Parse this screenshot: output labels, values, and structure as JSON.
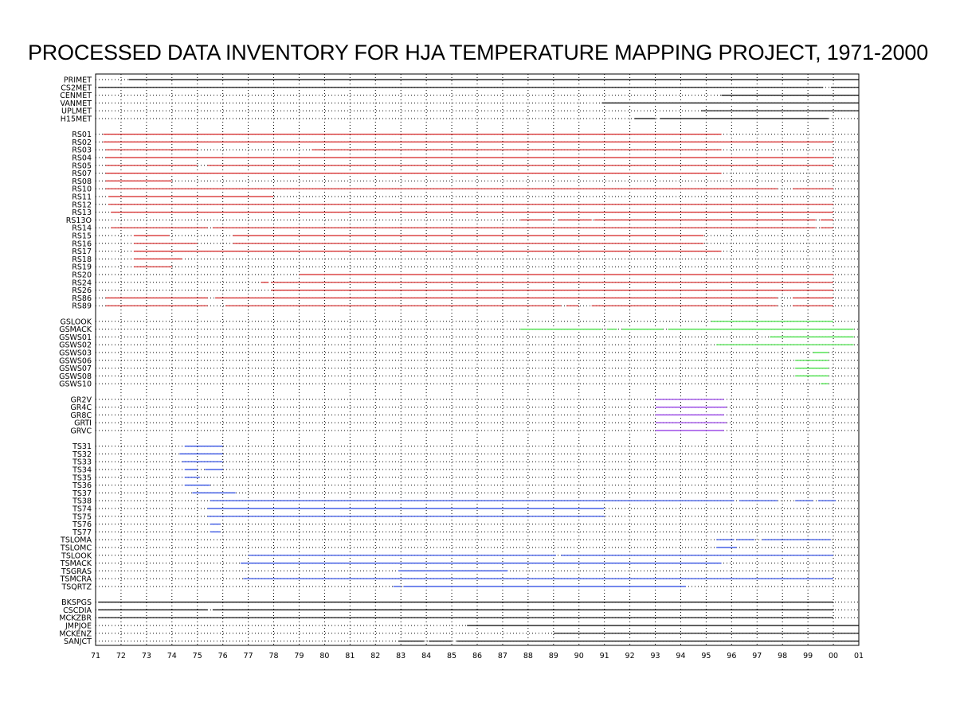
{
  "chart_data": {
    "type": "timeline",
    "title": "PROCESSED DATA INVENTORY FOR HJA TEMPERATURE MAPPING PROJECT, 1971-2000",
    "xlim": [
      1971,
      2001
    ],
    "x_tick_labels": [
      "71",
      "72",
      "73",
      "74",
      "75",
      "76",
      "77",
      "78",
      "79",
      "80",
      "81",
      "82",
      "83",
      "84",
      "85",
      "86",
      "87",
      "88",
      "89",
      "90",
      "91",
      "92",
      "93",
      "94",
      "95",
      "96",
      "97",
      "98",
      "99",
      "00",
      "01"
    ],
    "grid": "dotted",
    "groups": [
      {
        "color": "#000000",
        "stations": [
          {
            "name": "PRIMET",
            "spans": [
              [
                1972.3,
                2001.0
              ]
            ]
          },
          {
            "name": "CS2MET",
            "spans": [
              [
                1971.1,
                1999.6
              ],
              [
                1999.9,
                2001.0
              ]
            ]
          },
          {
            "name": "CENMET",
            "spans": [
              [
                1995.6,
                2001.0
              ]
            ]
          },
          {
            "name": "VANMET",
            "spans": [
              [
                1990.9,
                2001.0
              ]
            ]
          },
          {
            "name": "UPLMET",
            "spans": [
              [
                1994.8,
                2001.0
              ]
            ]
          },
          {
            "name": "H15MET",
            "spans": [
              [
                1992.2,
                1993.0
              ],
              [
                1993.2,
                1999.8
              ]
            ]
          }
        ]
      },
      {
        "color": "#d42020",
        "stations": [
          {
            "name": "RS01",
            "spans": [
              [
                1971.3,
                1995.6
              ]
            ]
          },
          {
            "name": "RS02",
            "spans": [
              [
                1971.3,
                2000.0
              ]
            ]
          },
          {
            "name": "RS03",
            "spans": [
              [
                1971.4,
                1975.0
              ],
              [
                1979.5,
                1995.6
              ]
            ]
          },
          {
            "name": "RS04",
            "spans": [
              [
                1971.4,
                2000.0
              ]
            ]
          },
          {
            "name": "RS05",
            "spans": [
              [
                1971.4,
                1975.0
              ],
              [
                1975.4,
                2000.0
              ]
            ]
          },
          {
            "name": "RS07",
            "spans": [
              [
                1971.4,
                1995.6
              ]
            ]
          },
          {
            "name": "RS08",
            "spans": [
              [
                1971.4,
                1974.0
              ]
            ]
          },
          {
            "name": "RS10",
            "spans": [
              [
                1971.4,
                1997.8
              ],
              [
                1998.4,
                2000.0
              ]
            ]
          },
          {
            "name": "RS11",
            "spans": [
              [
                1971.5,
                1978.0
              ]
            ]
          },
          {
            "name": "RS12",
            "spans": [
              [
                1971.5,
                2000.0
              ]
            ]
          },
          {
            "name": "RS13",
            "spans": [
              [
                1971.6,
                2000.0
              ]
            ]
          },
          {
            "name": "RS13O",
            "spans": [
              [
                1987.7,
                1988.9
              ],
              [
                1989.2,
                1990.5
              ],
              [
                1990.6,
                1999.3
              ],
              [
                1999.5,
                2000.0
              ]
            ]
          },
          {
            "name": "RS14",
            "spans": [
              [
                1971.6,
                1975.4
              ],
              [
                1975.6,
                1999.3
              ],
              [
                1999.5,
                2000.0
              ]
            ]
          },
          {
            "name": "RS15",
            "spans": [
              [
                1972.5,
                1973.9
              ],
              [
                1976.4,
                1994.9
              ]
            ]
          },
          {
            "name": "RS16",
            "spans": [
              [
                1972.5,
                1975.0
              ],
              [
                1976.4,
                1994.9
              ]
            ]
          },
          {
            "name": "RS17",
            "spans": [
              [
                1972.5,
                1995.6
              ]
            ]
          },
          {
            "name": "RS18",
            "spans": [
              [
                1972.5,
                1974.4
              ]
            ]
          },
          {
            "name": "RS19",
            "spans": [
              [
                1972.5,
                1974.0
              ]
            ]
          },
          {
            "name": "RS20",
            "spans": [
              [
                1979.0,
                2000.0
              ]
            ]
          },
          {
            "name": "RS24",
            "spans": [
              [
                1977.5,
                1977.8
              ],
              [
                1977.9,
                2000.0
              ]
            ]
          },
          {
            "name": "RS26",
            "spans": [
              [
                1977.9,
                2000.0
              ]
            ]
          },
          {
            "name": "RS86",
            "spans": [
              [
                1971.4,
                1975.4
              ],
              [
                1975.7,
                1997.8
              ],
              [
                1998.4,
                2000.0
              ]
            ]
          },
          {
            "name": "RS89",
            "spans": [
              [
                1971.4,
                1975.4
              ],
              [
                1976.1,
                1989.3
              ],
              [
                1989.5,
                1990.0
              ],
              [
                1990.5,
                1997.8
              ],
              [
                1998.4,
                2000.0
              ]
            ]
          }
        ]
      },
      {
        "color": "#33dd33",
        "stations": [
          {
            "name": "GSLOOK",
            "spans": [
              [
                1995.2,
                2000.0
              ]
            ]
          },
          {
            "name": "GSMACK",
            "spans": [
              [
                1987.7,
                1990.9
              ],
              [
                1991.1,
                1991.5
              ],
              [
                1991.7,
                1993.3
              ],
              [
                1993.5,
                2000.8
              ]
            ]
          },
          {
            "name": "GSWS01",
            "spans": [
              [
                1997.5,
                2000.8
              ]
            ]
          },
          {
            "name": "GSWS02",
            "spans": [
              [
                1995.4,
                2000.8
              ]
            ]
          },
          {
            "name": "GSWS03",
            "spans": [
              [
                1999.2,
                1999.8
              ]
            ]
          },
          {
            "name": "GSWS06",
            "spans": [
              [
                1998.5,
                1999.8
              ]
            ]
          },
          {
            "name": "GSWS07",
            "spans": [
              [
                1998.5,
                1999.8
              ]
            ]
          },
          {
            "name": "GSWS08",
            "spans": [
              [
                1998.5,
                1999.8
              ]
            ]
          },
          {
            "name": "GSWS10",
            "spans": [
              [
                1999.5,
                1999.8
              ]
            ]
          }
        ]
      },
      {
        "color": "#8a2be2",
        "stations": [
          {
            "name": "GR2V",
            "spans": [
              [
                1993.0,
                1995.7
              ]
            ]
          },
          {
            "name": "GR4C",
            "spans": [
              [
                1993.0,
                1995.8
              ]
            ]
          },
          {
            "name": "GR8C",
            "spans": [
              [
                1993.0,
                1995.7
              ]
            ]
          },
          {
            "name": "GRTI",
            "spans": [
              [
                1993.0,
                1995.8
              ]
            ]
          },
          {
            "name": "GRVC",
            "spans": [
              [
                1993.0,
                1995.7
              ]
            ]
          }
        ]
      },
      {
        "color": "#2040e0",
        "stations": [
          {
            "name": "TS31",
            "spans": [
              [
                1974.5,
                1976.0
              ]
            ]
          },
          {
            "name": "TS32",
            "spans": [
              [
                1974.3,
                1976.0
              ]
            ]
          },
          {
            "name": "TS33",
            "spans": [
              [
                1974.4,
                1976.0
              ]
            ]
          },
          {
            "name": "TS34",
            "spans": [
              [
                1974.5,
                1975.0
              ],
              [
                1975.3,
                1976.0
              ]
            ]
          },
          {
            "name": "TS35",
            "spans": [
              [
                1974.5,
                1975.1
              ]
            ]
          },
          {
            "name": "TS36",
            "spans": [
              [
                1974.5,
                1975.5
              ]
            ]
          },
          {
            "name": "TS37",
            "spans": [
              [
                1974.8,
                1976.5
              ]
            ]
          },
          {
            "name": "TS38",
            "spans": [
              [
                1975.5,
                1996.1
              ],
              [
                1996.3,
                1997.8
              ],
              [
                1998.5,
                1999.2
              ],
              [
                1999.4,
                2000.1
              ]
            ]
          },
          {
            "name": "TS74",
            "spans": [
              [
                1975.4,
                1991.0
              ]
            ]
          },
          {
            "name": "TS75",
            "spans": [
              [
                1975.4,
                1991.0
              ]
            ]
          },
          {
            "name": "TS76",
            "spans": [
              [
                1975.5,
                1975.9
              ]
            ]
          },
          {
            "name": "TS77",
            "spans": [
              [
                1975.5,
                1975.9
              ]
            ]
          },
          {
            "name": "TSLOMA",
            "spans": [
              [
                1995.4,
                1996.1
              ],
              [
                1996.2,
                1996.9
              ],
              [
                1997.2,
                1999.9
              ]
            ]
          },
          {
            "name": "TSLOMC",
            "spans": [
              [
                1995.4,
                1996.2
              ]
            ]
          },
          {
            "name": "TSLOOK",
            "spans": [
              [
                1977.0,
                1989.1
              ],
              [
                1989.3,
                2000.0
              ]
            ]
          },
          {
            "name": "TSMACK",
            "spans": [
              [
                1976.7,
                1995.6
              ]
            ]
          },
          {
            "name": "TSGRAS",
            "spans": [
              [
                1982.9,
                1987.2
              ]
            ]
          },
          {
            "name": "TSMCRA",
            "spans": [
              [
                1976.8,
                2000.0
              ]
            ]
          },
          {
            "name": "TSQRTZ",
            "spans": [
              [
                1982.7,
                1983.0
              ],
              [
                1983.1,
                1994.2
              ]
            ]
          }
        ]
      },
      {
        "color": "#000000",
        "stations": [
          {
            "name": "BKSPGS",
            "spans": [
              [
                1971.1,
                2000.0
              ]
            ]
          },
          {
            "name": "CSCDIA",
            "spans": [
              [
                1971.1,
                1975.4
              ],
              [
                1975.6,
                2000.0
              ]
            ]
          },
          {
            "name": "MCKZBR",
            "spans": [
              [
                1971.1,
                2000.0
              ]
            ]
          },
          {
            "name": "JMPJOE",
            "spans": [
              [
                1985.6,
                2001.0
              ]
            ]
          },
          {
            "name": "MCKENZ",
            "spans": [
              [
                1989.0,
                2001.0
              ]
            ]
          },
          {
            "name": "SANJCT",
            "spans": [
              [
                1982.9,
                1983.9
              ],
              [
                1984.1,
                1985.0
              ],
              [
                1985.2,
                2001.0
              ]
            ]
          }
        ]
      }
    ]
  }
}
